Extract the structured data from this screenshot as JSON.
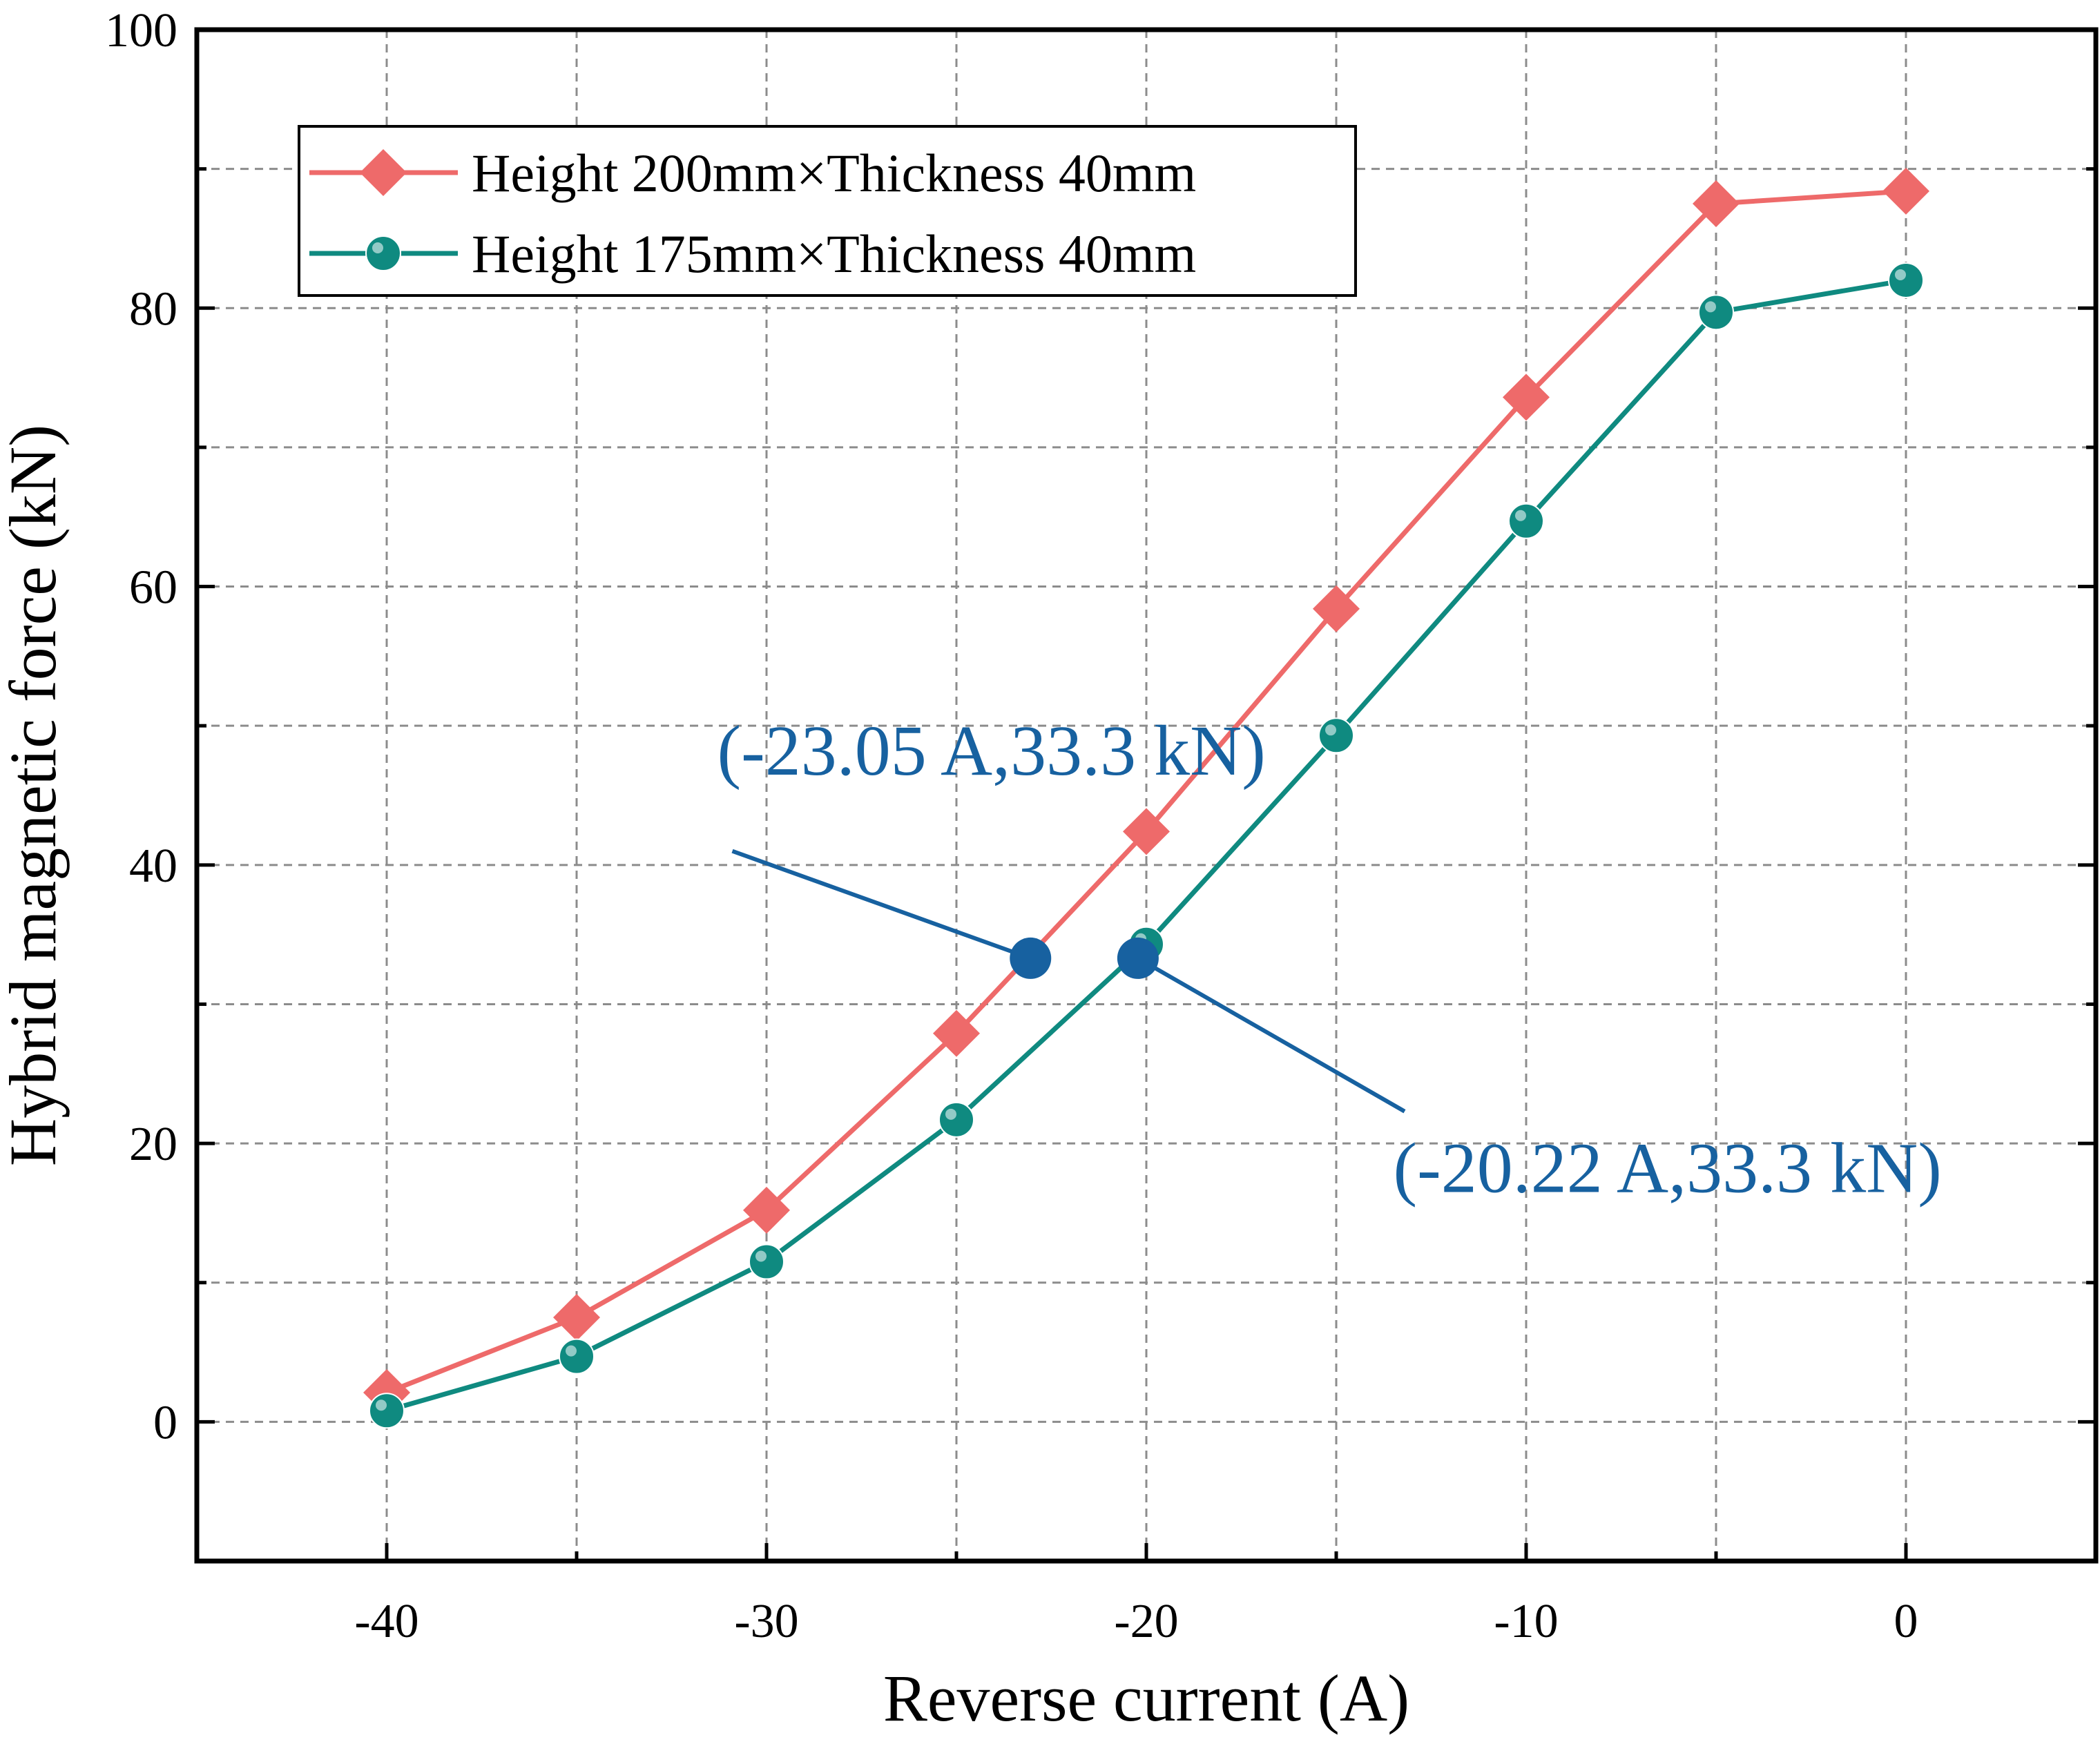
{
  "chart_data": {
    "type": "line",
    "title": "",
    "xlabel": "Reverse current (A)",
    "ylabel": "Hybrid magnetic force (kN)",
    "xlim": [
      -45,
      5
    ],
    "ylim": [
      -10,
      100
    ],
    "x_ticks": [
      -40,
      -30,
      -20,
      -10,
      0
    ],
    "y_ticks": [
      0,
      20,
      40,
      60,
      80,
      100
    ],
    "grid": true,
    "legend_position": "top-left",
    "series": [
      {
        "name": "Height 200mm×Thickness 40mm",
        "marker": "diamond",
        "color": "#ee6a6a",
        "x": [
          -40,
          -35,
          -30,
          -25,
          -20,
          -15,
          -10,
          -5,
          0
        ],
        "y": [
          2.1,
          7.5,
          15.2,
          27.9,
          42.4,
          58.4,
          73.6,
          87.5,
          88.4
        ]
      },
      {
        "name": "Height 175mm×Thickness 40mm",
        "marker": "circle",
        "color": "#0f8a80",
        "x": [
          -40,
          -35,
          -30,
          -25,
          -20,
          -15,
          -10,
          -5,
          0
        ],
        "y": [
          0.8,
          4.7,
          11.5,
          21.7,
          34.3,
          49.3,
          64.7,
          79.7,
          82.0
        ]
      }
    ],
    "annotations": [
      {
        "text": "(-23.05 A,33.3 kN)",
        "point": [
          -23.05,
          33.3
        ],
        "label_at": [
          -31.3,
          46.5
        ],
        "pointer_from": [
          -30.9,
          41.0
        ],
        "color": "#1761a0"
      },
      {
        "text": "(-20.22 A,33.3 kN)",
        "point": [
          -20.22,
          33.3
        ],
        "label_at": [
          -13.5,
          16.5
        ],
        "pointer_from": [
          -13.2,
          22.3
        ],
        "color": "#1761a0"
      }
    ]
  }
}
